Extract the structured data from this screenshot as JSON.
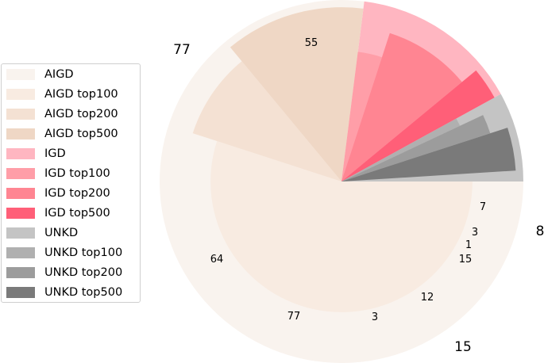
{
  "chart_data": {
    "type": "pie",
    "outer_ring": [
      {
        "category": "AIGD",
        "value": 77,
        "label": "77"
      },
      {
        "category": "IGD",
        "value": 15,
        "label": "15"
      },
      {
        "category": "UNKD",
        "value": 8,
        "label": "8"
      }
    ],
    "inner_ring": [
      {
        "category": "AIGD top100",
        "value": 55,
        "label": "55"
      },
      {
        "category": "AIGD top200",
        "value": 64,
        "label": "64"
      },
      {
        "category": "AIGD top500",
        "value": 77,
        "label": "77"
      },
      {
        "category": "IGD top100",
        "value": 3,
        "label": "3"
      },
      {
        "category": "IGD top200",
        "value": 12,
        "label": "12"
      },
      {
        "category": "IGD top500",
        "value": 15,
        "label": "15"
      },
      {
        "category": "UNKD top100",
        "value": 1,
        "label": "1"
      },
      {
        "category": "UNKD top200",
        "value": 3,
        "label": "3"
      },
      {
        "category": "UNKD top500",
        "value": 7,
        "label": "7"
      }
    ],
    "legend": {
      "placement": "left",
      "entries": [
        {
          "label": "AIGD",
          "color": "#f9f3ee"
        },
        {
          "label": "AIGD top100",
          "color": "#f8ebe1"
        },
        {
          "label": "AIGD top200",
          "color": "#f4e1d3"
        },
        {
          "label": "AIGD top500",
          "color": "#efd7c5"
        },
        {
          "label": "IGD",
          "color": "#ffb6c1"
        },
        {
          "label": "IGD top100",
          "color": "#ff9ea8"
        },
        {
          "label": "IGD top200",
          "color": "#ff8592"
        },
        {
          "label": "IGD top500",
          "color": "#ff5f78"
        },
        {
          "label": "UNKD",
          "color": "#c4c4c4"
        },
        {
          "label": "UNKD top100",
          "color": "#b0b0b0"
        },
        {
          "label": "UNKD top200",
          "color": "#9c9c9c"
        },
        {
          "label": "UNKD top500",
          "color": "#7a7a7a"
        }
      ]
    }
  }
}
